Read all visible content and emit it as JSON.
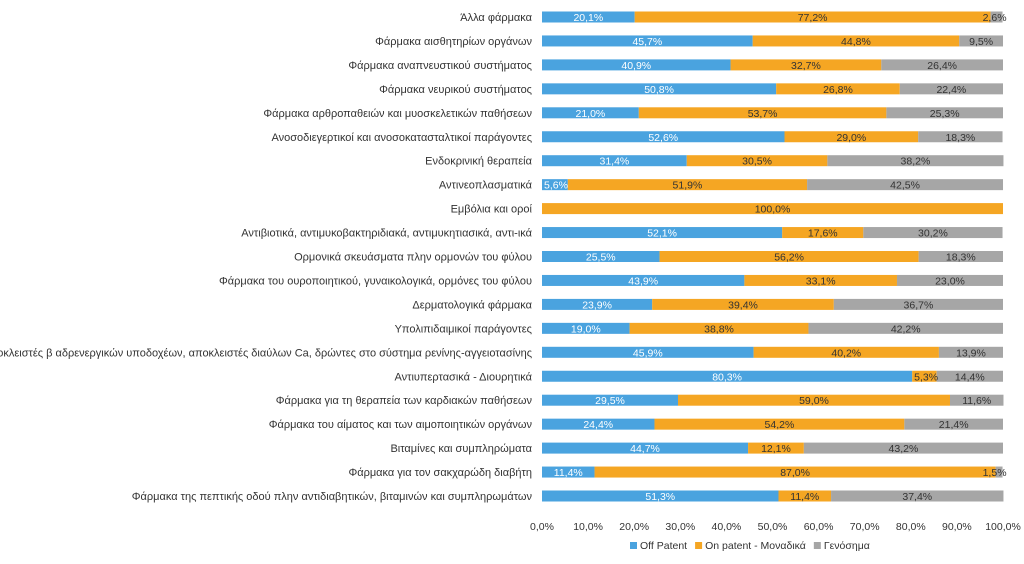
{
  "chart_data": {
    "type": "bar",
    "orientation": "horizontal",
    "stacked": true,
    "title": "",
    "xlabel": "",
    "ylabel": "",
    "xlim": [
      0,
      100
    ],
    "xticks": [
      "0,0%",
      "10,0%",
      "20,0%",
      "30,0%",
      "40,0%",
      "50,0%",
      "60,0%",
      "70,0%",
      "80,0%",
      "90,0%",
      "100,0%"
    ],
    "legend_position": "bottom",
    "categories": [
      "Άλλα φάρμακα",
      "Φάρμακα αισθητηρίων οργάνων",
      "Φάρμακα αναπνευστικού συστήματος",
      "Φάρμακα νευρικού συστήματος",
      "Φάρμακα αρθροπαθειών και μυοσκελετικών παθήσεων",
      "Ανοσοδιεγερτικοί και ανοσοκατασταλτικοί παράγοντες",
      "Ενδοκρινική θεραπεία",
      "Αντινεοπλασματικά",
      "Εμβόλια και οροί",
      "Αντιβιοτικά, αντιμυκοβακτηριδιακά, αντιμυκητιασικά, αντι-ικά",
      "Ορμονικά σκευάσματα πλην ορμονών του φύλου",
      "Φάρμακα του ουροποιητικού, γυναικολογικά, ορμόνες του φύλου",
      "Δερματολογικά φάρμακα",
      "Υπολιπιδαιμικοί παράγοντες",
      "Αποκλειστές β αδρενεργικών υποδοχέων, αποκλειστές διαύλων Ca, δρώντες στο σύστημα ρενίνης-αγγειοτασίνης",
      "Αντιυπερτασικά - Διουρητικά",
      "Φάρμακα για τη θεραπεία των καρδιακών παθήσεων",
      "Φάρμακα του αίματος και των αιμοποιητικών οργάνων",
      "Βιταμίνες και συμπληρώματα",
      "Φάρμακα για τον σακχαρώδη διαβήτη",
      "Φάρμακα της πεπτικής οδού πλην αντιδιαβητικών, βιταμινών και συμπληρωμάτων"
    ],
    "series": [
      {
        "name": "Off Patent",
        "color": "#4aa3df",
        "values": [
          20.1,
          45.7,
          40.9,
          50.8,
          21.0,
          52.6,
          31.4,
          5.6,
          0,
          52.1,
          25.5,
          43.9,
          23.9,
          19.0,
          45.9,
          80.3,
          29.5,
          24.4,
          44.7,
          11.4,
          51.3
        ],
        "labels": [
          "20,1%",
          "45,7%",
          "40,9%",
          "50,8%",
          "21,0%",
          "52,6%",
          "31,4%",
          "5,6%",
          "",
          "52,1%",
          "25,5%",
          "43,9%",
          "23,9%",
          "19,0%",
          "45,9%",
          "80,3%",
          "29,5%",
          "24,4%",
          "44,7%",
          "11,4%",
          "51,3%"
        ]
      },
      {
        "name": "On patent - Μοναδικά",
        "color": "#f5a623",
        "values": [
          77.2,
          44.8,
          32.7,
          26.8,
          53.7,
          29.0,
          30.5,
          51.9,
          100.0,
          17.6,
          56.2,
          33.1,
          39.4,
          38.8,
          40.2,
          5.3,
          59.0,
          54.2,
          12.1,
          87.0,
          11.4
        ],
        "labels": [
          "77,2%",
          "44,8%",
          "32,7%",
          "26,8%",
          "53,7%",
          "29,0%",
          "30,5%",
          "51,9%",
          "100,0%",
          "17,6%",
          "56,2%",
          "33,1%",
          "39,4%",
          "38,8%",
          "40,2%",
          "5,3%",
          "59,0%",
          "54,2%",
          "12,1%",
          "87,0%",
          "11,4%"
        ]
      },
      {
        "name": "Γενόσημα",
        "color": "#a6a6a6",
        "values": [
          2.6,
          9.5,
          26.4,
          22.4,
          25.3,
          18.3,
          38.2,
          42.5,
          0,
          30.2,
          18.3,
          23.0,
          36.7,
          42.2,
          13.9,
          14.4,
          11.6,
          21.4,
          43.2,
          1.5,
          37.4
        ],
        "labels": [
          "2,6%",
          "9,5%",
          "26,4%",
          "22,4%",
          "25,3%",
          "18,3%",
          "38,2%",
          "42,5%",
          "",
          "30,2%",
          "18,3%",
          "23,0%",
          "36,7%",
          "42,2%",
          "13,9%",
          "14,4%",
          "11,6%",
          "21,4%",
          "43,2%",
          "1,5%",
          "37,4%"
        ]
      }
    ]
  }
}
